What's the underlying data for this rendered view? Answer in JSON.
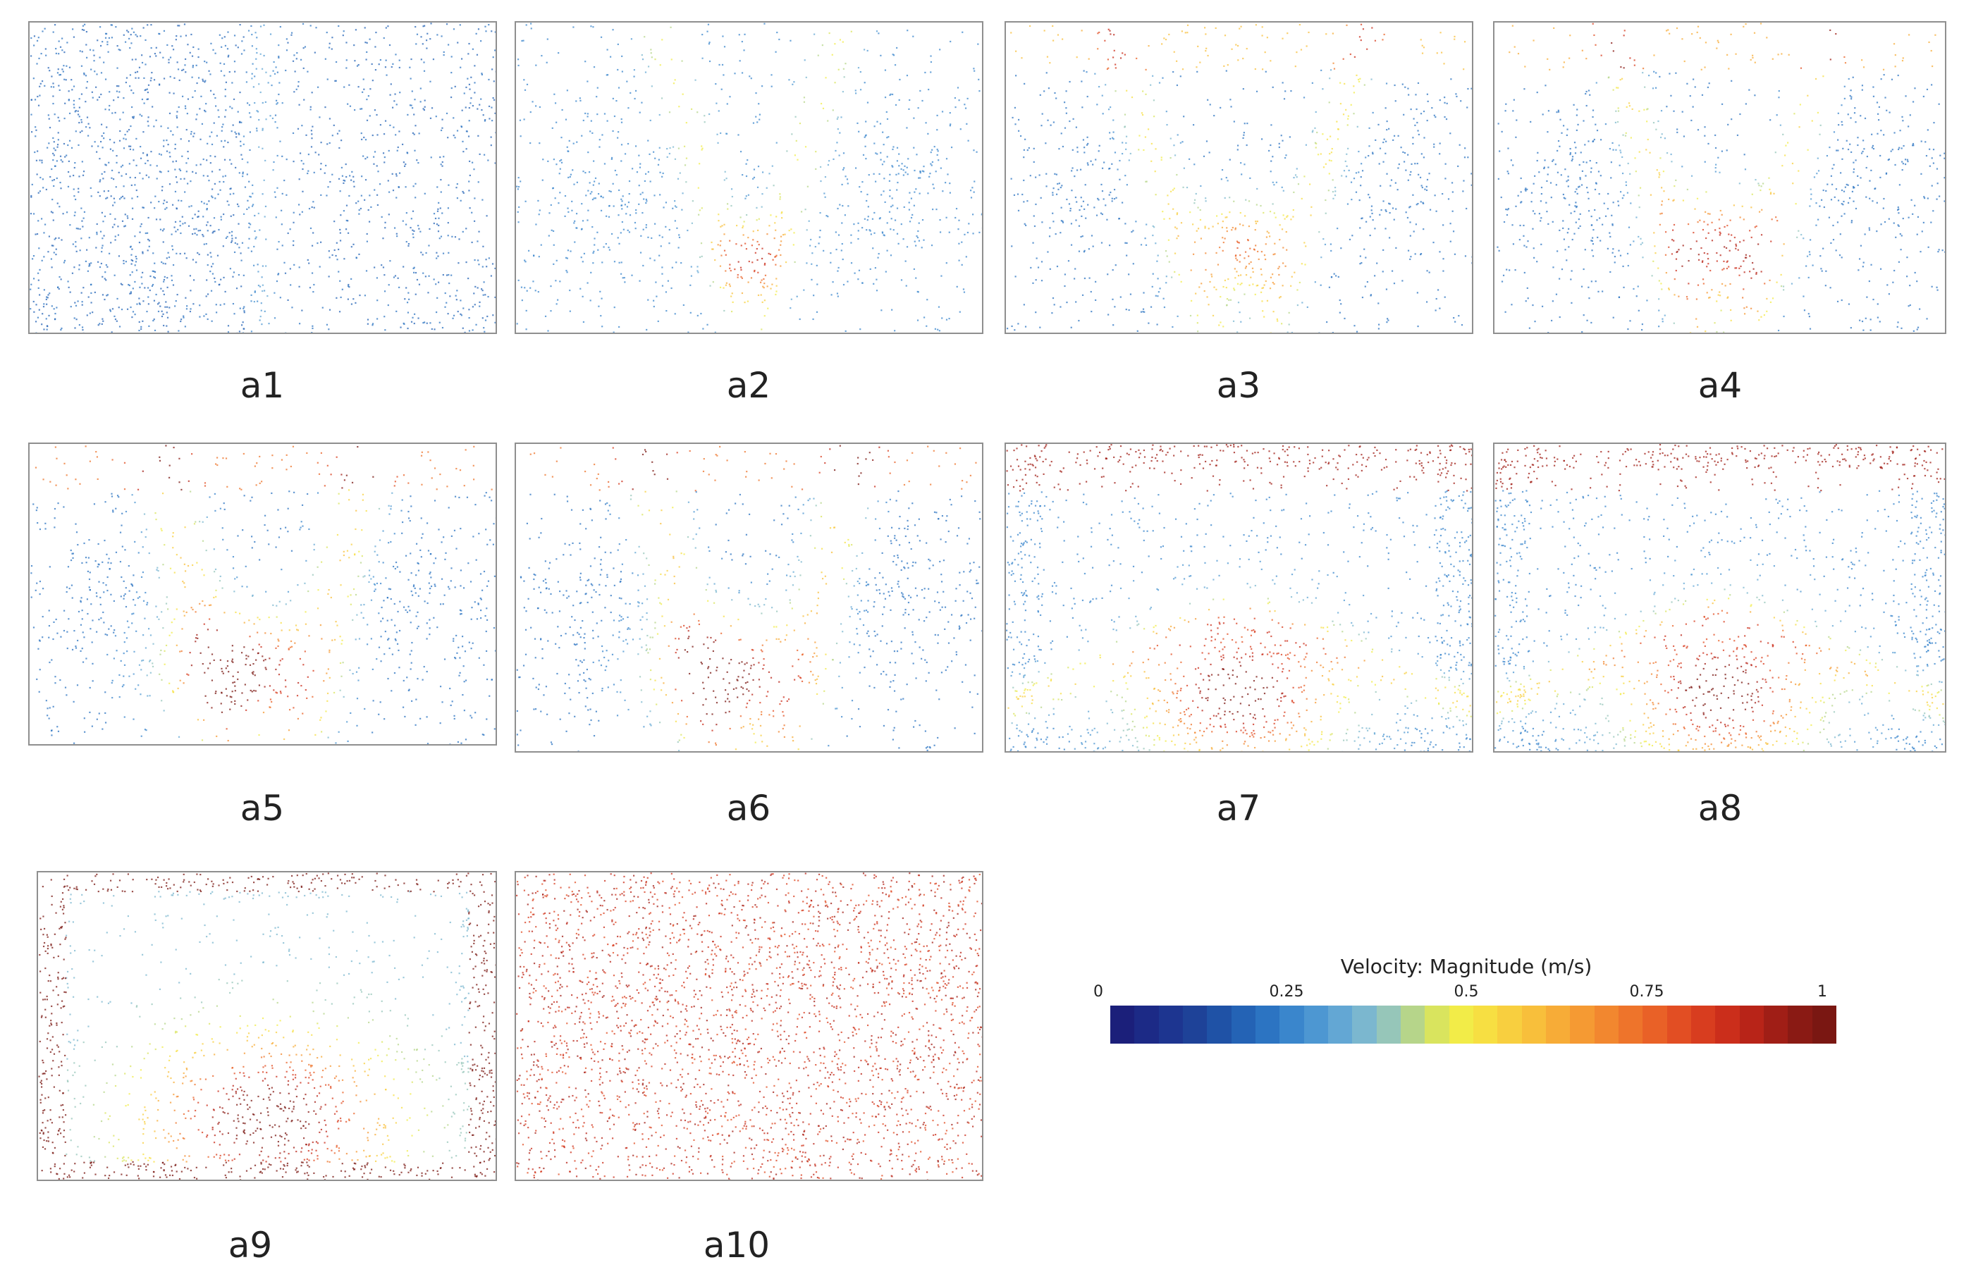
{
  "panels": [
    {
      "label": "a1",
      "pattern": 1
    },
    {
      "label": "a2",
      "pattern": 2
    },
    {
      "label": "a3",
      "pattern": 3
    },
    {
      "label": "a4",
      "pattern": 4
    },
    {
      "label": "a5",
      "pattern": 5
    },
    {
      "label": "a6",
      "pattern": 6
    },
    {
      "label": "a7",
      "pattern": 7
    },
    {
      "label": "a8",
      "pattern": 8
    },
    {
      "label": "a9",
      "pattern": 9
    },
    {
      "label": "a10",
      "pattern": 10
    }
  ],
  "legend": {
    "title": "Velocity: Magnitude (m/s)",
    "ticks": [
      "0",
      "0.25",
      "0.5",
      "0.75",
      "1"
    ],
    "range": [
      0,
      1
    ],
    "colors": [
      "#1b1f7a",
      "#1c2a86",
      "#1d3590",
      "#1e4298",
      "#1f52a6",
      "#2463b5",
      "#2c74c2",
      "#3a86cc",
      "#4d97d2",
      "#63a7d4",
      "#7bb7cf",
      "#96c6b9",
      "#b6d58a",
      "#d9e45e",
      "#f2ec48",
      "#f7df42",
      "#f8cf3f",
      "#f8bf3b",
      "#f7ac37",
      "#f59a33",
      "#f2872f",
      "#ee742b",
      "#e96127",
      "#e24e23",
      "#d83d1f",
      "#cb2e1b",
      "#b82418",
      "#a01e16",
      "#8a1a14",
      "#7a1712"
    ]
  }
}
